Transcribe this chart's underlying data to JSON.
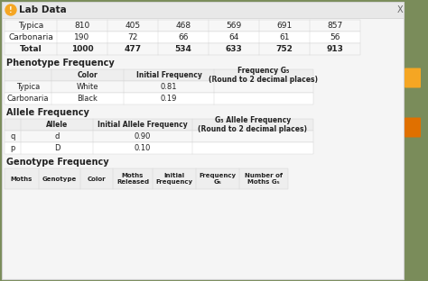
{
  "title": "Lab Data",
  "lab_data_rows": [
    [
      "Typica",
      "810",
      "405",
      "468",
      "569",
      "691",
      "857"
    ],
    [
      "Carbonaria",
      "190",
      "72",
      "66",
      "64",
      "61",
      "56"
    ],
    [
      "Total",
      "1000",
      "477",
      "534",
      "633",
      "752",
      "913"
    ]
  ],
  "phenotype_section": "Phenotype Frequency",
  "phenotype_headers": [
    "",
    "Color",
    "Initial Frequency",
    "Frequency G₅\n(Round to 2 decimal places)"
  ],
  "phenotype_rows": [
    [
      "Typica",
      "White",
      "0.81",
      ""
    ],
    [
      "Carbonaria",
      "Black",
      "0.19",
      ""
    ]
  ],
  "allele_section": "Allele Frequency",
  "allele_headers": [
    "",
    "Allele",
    "Initial Allele Frequency",
    "G₅ Allele Frequency\n(Round to 2 decimal places)"
  ],
  "allele_rows": [
    [
      "q",
      "d",
      "0.90",
      ""
    ],
    [
      "p",
      "D",
      "0.10",
      ""
    ]
  ],
  "genotype_section": "Genotype Frequency",
  "genotype_headers": [
    "Moths",
    "Genotype",
    "Color",
    "Moths\nReleased",
    "Initial\nFrequency",
    "Frequency\nG₅",
    "Number of\nMoths G₅"
  ],
  "panel_color": "#f5f5f5",
  "title_bar_color": "#e8e8e8",
  "row_alt_color": "#f7f7f7",
  "row_base_color": "#ffffff",
  "header_row_color": "#eeeeee",
  "border_color": "#d0d0d0",
  "text_color": "#222222",
  "section_label_color": "#222222",
  "orange_btn1": "#f5a623",
  "orange_btn2": "#e07000",
  "bg_color": "#7a8c5a"
}
